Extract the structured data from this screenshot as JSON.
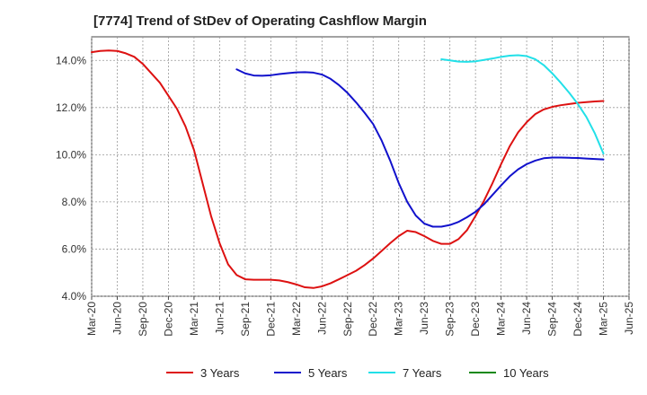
{
  "chart_data": {
    "type": "line",
    "title": "[7774]  Trend of StDev of Operating Cashflow Margin",
    "xlabel": "",
    "ylabel": "",
    "ylim": [
      4.0,
      15.0
    ],
    "y_ticks": [
      "4.0%",
      "6.0%",
      "8.0%",
      "10.0%",
      "12.0%",
      "14.0%"
    ],
    "y_tick_values": [
      4,
      6,
      8,
      10,
      12,
      14
    ],
    "x_ticks": [
      "Mar-20",
      "Jun-20",
      "Sep-20",
      "Dec-20",
      "Mar-21",
      "Jun-21",
      "Sep-21",
      "Dec-21",
      "Mar-22",
      "Jun-22",
      "Sep-22",
      "Dec-22",
      "Mar-23",
      "Jun-23",
      "Sep-23",
      "Dec-23",
      "Mar-24",
      "Jun-24",
      "Sep-24",
      "Dec-24",
      "Mar-25",
      "Jun-25"
    ],
    "grid": true,
    "legend_position": "bottom",
    "series": [
      {
        "name": "3 Years",
        "color": "#dd1111",
        "points": [
          [
            "Mar-20",
            14.35
          ],
          [
            "Apr-20",
            14.4
          ],
          [
            "May-20",
            14.42
          ],
          [
            "Jun-20",
            14.4
          ],
          [
            "Jul-20",
            14.3
          ],
          [
            "Aug-20",
            14.15
          ],
          [
            "Sep-20",
            13.85
          ],
          [
            "Oct-20",
            13.45
          ],
          [
            "Nov-20",
            13.05
          ],
          [
            "Dec-20",
            12.5
          ],
          [
            "Jan-21",
            11.95
          ],
          [
            "Feb-21",
            11.2
          ],
          [
            "Mar-21",
            10.2
          ],
          [
            "Apr-21",
            8.8
          ],
          [
            "May-21",
            7.4
          ],
          [
            "Jun-21",
            6.25
          ],
          [
            "Jul-21",
            5.35
          ],
          [
            "Aug-21",
            4.9
          ],
          [
            "Sep-21",
            4.72
          ],
          [
            "Oct-21",
            4.7
          ],
          [
            "Nov-21",
            4.7
          ],
          [
            "Dec-21",
            4.7
          ],
          [
            "Jan-22",
            4.67
          ],
          [
            "Feb-22",
            4.6
          ],
          [
            "Mar-22",
            4.5
          ],
          [
            "Apr-22",
            4.38
          ],
          [
            "May-22",
            4.35
          ],
          [
            "Jun-22",
            4.42
          ],
          [
            "Jul-22",
            4.55
          ],
          [
            "Aug-22",
            4.72
          ],
          [
            "Sep-22",
            4.9
          ],
          [
            "Oct-22",
            5.08
          ],
          [
            "Nov-22",
            5.32
          ],
          [
            "Dec-22",
            5.6
          ],
          [
            "Jan-23",
            5.92
          ],
          [
            "Feb-23",
            6.25
          ],
          [
            "Mar-23",
            6.55
          ],
          [
            "Apr-23",
            6.78
          ],
          [
            "May-23",
            6.72
          ],
          [
            "Jun-23",
            6.55
          ],
          [
            "Jul-23",
            6.35
          ],
          [
            "Aug-23",
            6.22
          ],
          [
            "Sep-23",
            6.22
          ],
          [
            "Oct-23",
            6.42
          ],
          [
            "Nov-23",
            6.8
          ],
          [
            "Dec-23",
            7.4
          ],
          [
            "Jan-24",
            8.05
          ],
          [
            "Feb-24",
            8.8
          ],
          [
            "Mar-24",
            9.6
          ],
          [
            "Apr-24",
            10.35
          ],
          [
            "May-24",
            10.95
          ],
          [
            "Jun-24",
            11.38
          ],
          [
            "Jul-24",
            11.72
          ],
          [
            "Aug-24",
            11.92
          ],
          [
            "Sep-24",
            12.03
          ],
          [
            "Oct-24",
            12.1
          ],
          [
            "Nov-24",
            12.15
          ],
          [
            "Dec-24",
            12.2
          ],
          [
            "Jan-25",
            12.23
          ],
          [
            "Feb-25",
            12.26
          ],
          [
            "Mar-25",
            12.28
          ]
        ]
      },
      {
        "name": "5 Years",
        "color": "#1111cc",
        "points": [
          [
            "Aug-21",
            13.62
          ],
          [
            "Sep-21",
            13.45
          ],
          [
            "Oct-21",
            13.36
          ],
          [
            "Nov-21",
            13.35
          ],
          [
            "Dec-21",
            13.37
          ],
          [
            "Jan-22",
            13.42
          ],
          [
            "Feb-22",
            13.46
          ],
          [
            "Mar-22",
            13.49
          ],
          [
            "Apr-22",
            13.5
          ],
          [
            "May-22",
            13.48
          ],
          [
            "Jun-22",
            13.4
          ],
          [
            "Jul-22",
            13.22
          ],
          [
            "Aug-22",
            12.95
          ],
          [
            "Sep-22",
            12.62
          ],
          [
            "Oct-22",
            12.22
          ],
          [
            "Nov-22",
            11.78
          ],
          [
            "Dec-22",
            11.3
          ],
          [
            "Jan-23",
            10.6
          ],
          [
            "Feb-23",
            9.75
          ],
          [
            "Mar-23",
            8.8
          ],
          [
            "Apr-23",
            8.0
          ],
          [
            "May-23",
            7.42
          ],
          [
            "Jun-23",
            7.08
          ],
          [
            "Jul-23",
            6.95
          ],
          [
            "Aug-23",
            6.95
          ],
          [
            "Sep-23",
            7.02
          ],
          [
            "Oct-23",
            7.15
          ],
          [
            "Nov-23",
            7.35
          ],
          [
            "Dec-23",
            7.58
          ],
          [
            "Jan-24",
            7.9
          ],
          [
            "Feb-24",
            8.3
          ],
          [
            "Mar-24",
            8.7
          ],
          [
            "Apr-24",
            9.08
          ],
          [
            "May-24",
            9.38
          ],
          [
            "Jun-24",
            9.6
          ],
          [
            "Jul-24",
            9.75
          ],
          [
            "Aug-24",
            9.85
          ],
          [
            "Sep-24",
            9.88
          ],
          [
            "Oct-24",
            9.88
          ],
          [
            "Nov-24",
            9.87
          ],
          [
            "Dec-24",
            9.86
          ],
          [
            "Jan-25",
            9.84
          ],
          [
            "Feb-25",
            9.82
          ],
          [
            "Mar-25",
            9.8
          ]
        ]
      },
      {
        "name": "7 Years",
        "color": "#22e0e8",
        "points": [
          [
            "Aug-23",
            14.05
          ],
          [
            "Sep-23",
            14.0
          ],
          [
            "Oct-23",
            13.95
          ],
          [
            "Nov-23",
            13.94
          ],
          [
            "Dec-23",
            13.96
          ],
          [
            "Jan-24",
            14.02
          ],
          [
            "Feb-24",
            14.08
          ],
          [
            "Mar-24",
            14.15
          ],
          [
            "Apr-24",
            14.2
          ],
          [
            "May-24",
            14.22
          ],
          [
            "Jun-24",
            14.18
          ],
          [
            "Jul-24",
            14.05
          ],
          [
            "Aug-24",
            13.8
          ],
          [
            "Sep-24",
            13.45
          ],
          [
            "Oct-24",
            13.05
          ],
          [
            "Nov-24",
            12.62
          ],
          [
            "Dec-24",
            12.15
          ],
          [
            "Jan-25",
            11.6
          ],
          [
            "Feb-25",
            10.9
          ],
          [
            "Mar-25",
            10.05
          ]
        ]
      },
      {
        "name": "10 Years",
        "color": "#118811",
        "points": []
      }
    ]
  }
}
